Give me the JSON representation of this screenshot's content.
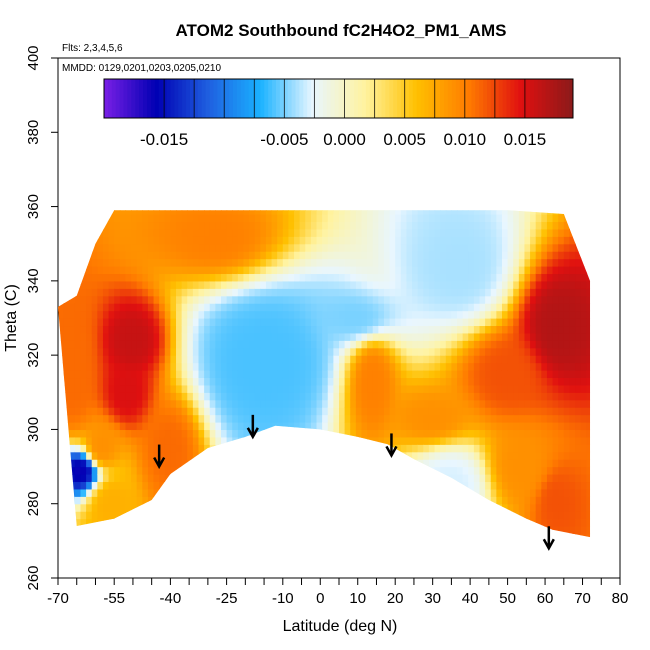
{
  "chart_data": {
    "type": "heatmap",
    "title": "ATOM2 Southbound fC2H4O2_PM1_AMS",
    "flights_note": "Flts: 2,3,4,5,6",
    "dates_note": "MMDD: 0129,0201,0203,0205,0210",
    "xlabel": "Latitude (deg N)",
    "ylabel": "Theta (C)",
    "xlim": [
      -70,
      80
    ],
    "ylim": [
      260,
      400
    ],
    "x_ticks_labeled": [
      -70,
      -55,
      -40,
      -25,
      -10,
      0,
      10,
      20,
      30,
      40,
      50,
      60,
      70,
      80
    ],
    "x_tick_labels": [
      "-70",
      "-55",
      "-40",
      "-25",
      "-10",
      "0",
      "10",
      "20",
      "30",
      "40",
      "50",
      "60",
      "70",
      "80"
    ],
    "x_ticks_minor": [
      -65,
      -60,
      -50,
      -45,
      -35,
      -30,
      -20,
      -15,
      -5,
      5,
      15,
      25,
      35,
      45,
      55,
      65,
      75
    ],
    "y_ticks": [
      260,
      280,
      300,
      320,
      340,
      360,
      380,
      400
    ],
    "y_tick_labels": [
      "260",
      "280",
      "300",
      "320",
      "340",
      "360",
      "380",
      "400"
    ],
    "colorbar": {
      "range": [
        -0.02,
        0.019
      ],
      "tick_values": [
        -0.015,
        -0.005,
        0.0,
        0.005,
        0.01,
        0.015
      ],
      "tick_labels": [
        "-0.015",
        "-0.005",
        "0.000",
        "0.005",
        "0.010",
        "0.015"
      ],
      "colors": [
        "#7a1fe6",
        "#0000b3",
        "#1f5fe0",
        "#1ab2ff",
        "#e8f6ff",
        "#fff3a0",
        "#ffc000",
        "#ff7b00",
        "#e01010",
        "#8b1a1a"
      ]
    },
    "arrows_latitude": [
      -43,
      -18,
      19,
      61
    ],
    "arrows_theta_tip": [
      290,
      298,
      293,
      268
    ],
    "domain_lower_boundary": [
      [
        -65,
        274
      ],
      [
        -55,
        276
      ],
      [
        -45,
        281
      ],
      [
        -40,
        288
      ],
      [
        -30,
        295
      ],
      [
        -20,
        298
      ],
      [
        -12,
        301
      ],
      [
        0,
        300
      ],
      [
        10,
        298
      ],
      [
        18,
        296
      ],
      [
        25,
        292
      ],
      [
        35,
        287
      ],
      [
        45,
        281
      ],
      [
        55,
        276
      ],
      [
        62,
        273
      ],
      [
        72,
        271
      ]
    ],
    "domain_upper_boundary": [
      [
        -70,
        333
      ],
      [
        -65,
        336
      ],
      [
        -60,
        350
      ],
      [
        -55,
        359
      ],
      [
        -45,
        359
      ],
      [
        -20,
        359
      ],
      [
        0,
        359
      ],
      [
        30,
        359
      ],
      [
        50,
        359
      ],
      [
        65,
        358
      ],
      [
        72,
        340
      ],
      [
        72,
        275
      ]
    ],
    "regions": [
      {
        "lat": [
          -70,
          -62
        ],
        "theta": [
          300,
          335
        ],
        "value": 0.011
      },
      {
        "lat": [
          -62,
          -55
        ],
        "theta": [
          290,
          300
        ],
        "value": 0.009
      },
      {
        "lat": [
          -68,
          -60
        ],
        "theta": [
          286,
          292
        ],
        "value": -0.016
      },
      {
        "lat": [
          -60,
          -52
        ],
        "theta": [
          275,
          286
        ],
        "value": 0.007
      },
      {
        "lat": [
          -55,
          -45
        ],
        "theta": [
          318,
          330
        ],
        "value": 0.016
      },
      {
        "lat": [
          -55,
          -48
        ],
        "theta": [
          305,
          315
        ],
        "value": 0.015
      },
      {
        "lat": [
          -45,
          -35
        ],
        "theta": [
          285,
          305
        ],
        "value": 0.011
      },
      {
        "lat": [
          -40,
          -15
        ],
        "theta": [
          345,
          358
        ],
        "value": 0.01
      },
      {
        "lat": [
          -30,
          0
        ],
        "theta": [
          302,
          335
        ],
        "value": -0.006
      },
      {
        "lat": [
          0,
          20
        ],
        "theta": [
          325,
          335
        ],
        "value": -0.005
      },
      {
        "lat": [
          10,
          18
        ],
        "theta": [
          300,
          325
        ],
        "value": 0.01
      },
      {
        "lat": [
          20,
          40
        ],
        "theta": [
          298,
          308
        ],
        "value": 0.009
      },
      {
        "lat": [
          25,
          50
        ],
        "theta": [
          330,
          358
        ],
        "value": -0.004
      },
      {
        "lat": [
          40,
          60
        ],
        "theta": [
          305,
          325
        ],
        "value": 0.012
      },
      {
        "lat": [
          55,
          72
        ],
        "theta": [
          315,
          340
        ],
        "value": 0.017
      },
      {
        "lat": [
          45,
          62
        ],
        "theta": [
          280,
          300
        ],
        "value": 0.009
      },
      {
        "lat": [
          58,
          68
        ],
        "theta": [
          272,
          290
        ],
        "value": 0.012
      },
      {
        "lat": [
          25,
          45
        ],
        "theta": [
          275,
          295
        ],
        "value": -0.003
      }
    ]
  }
}
